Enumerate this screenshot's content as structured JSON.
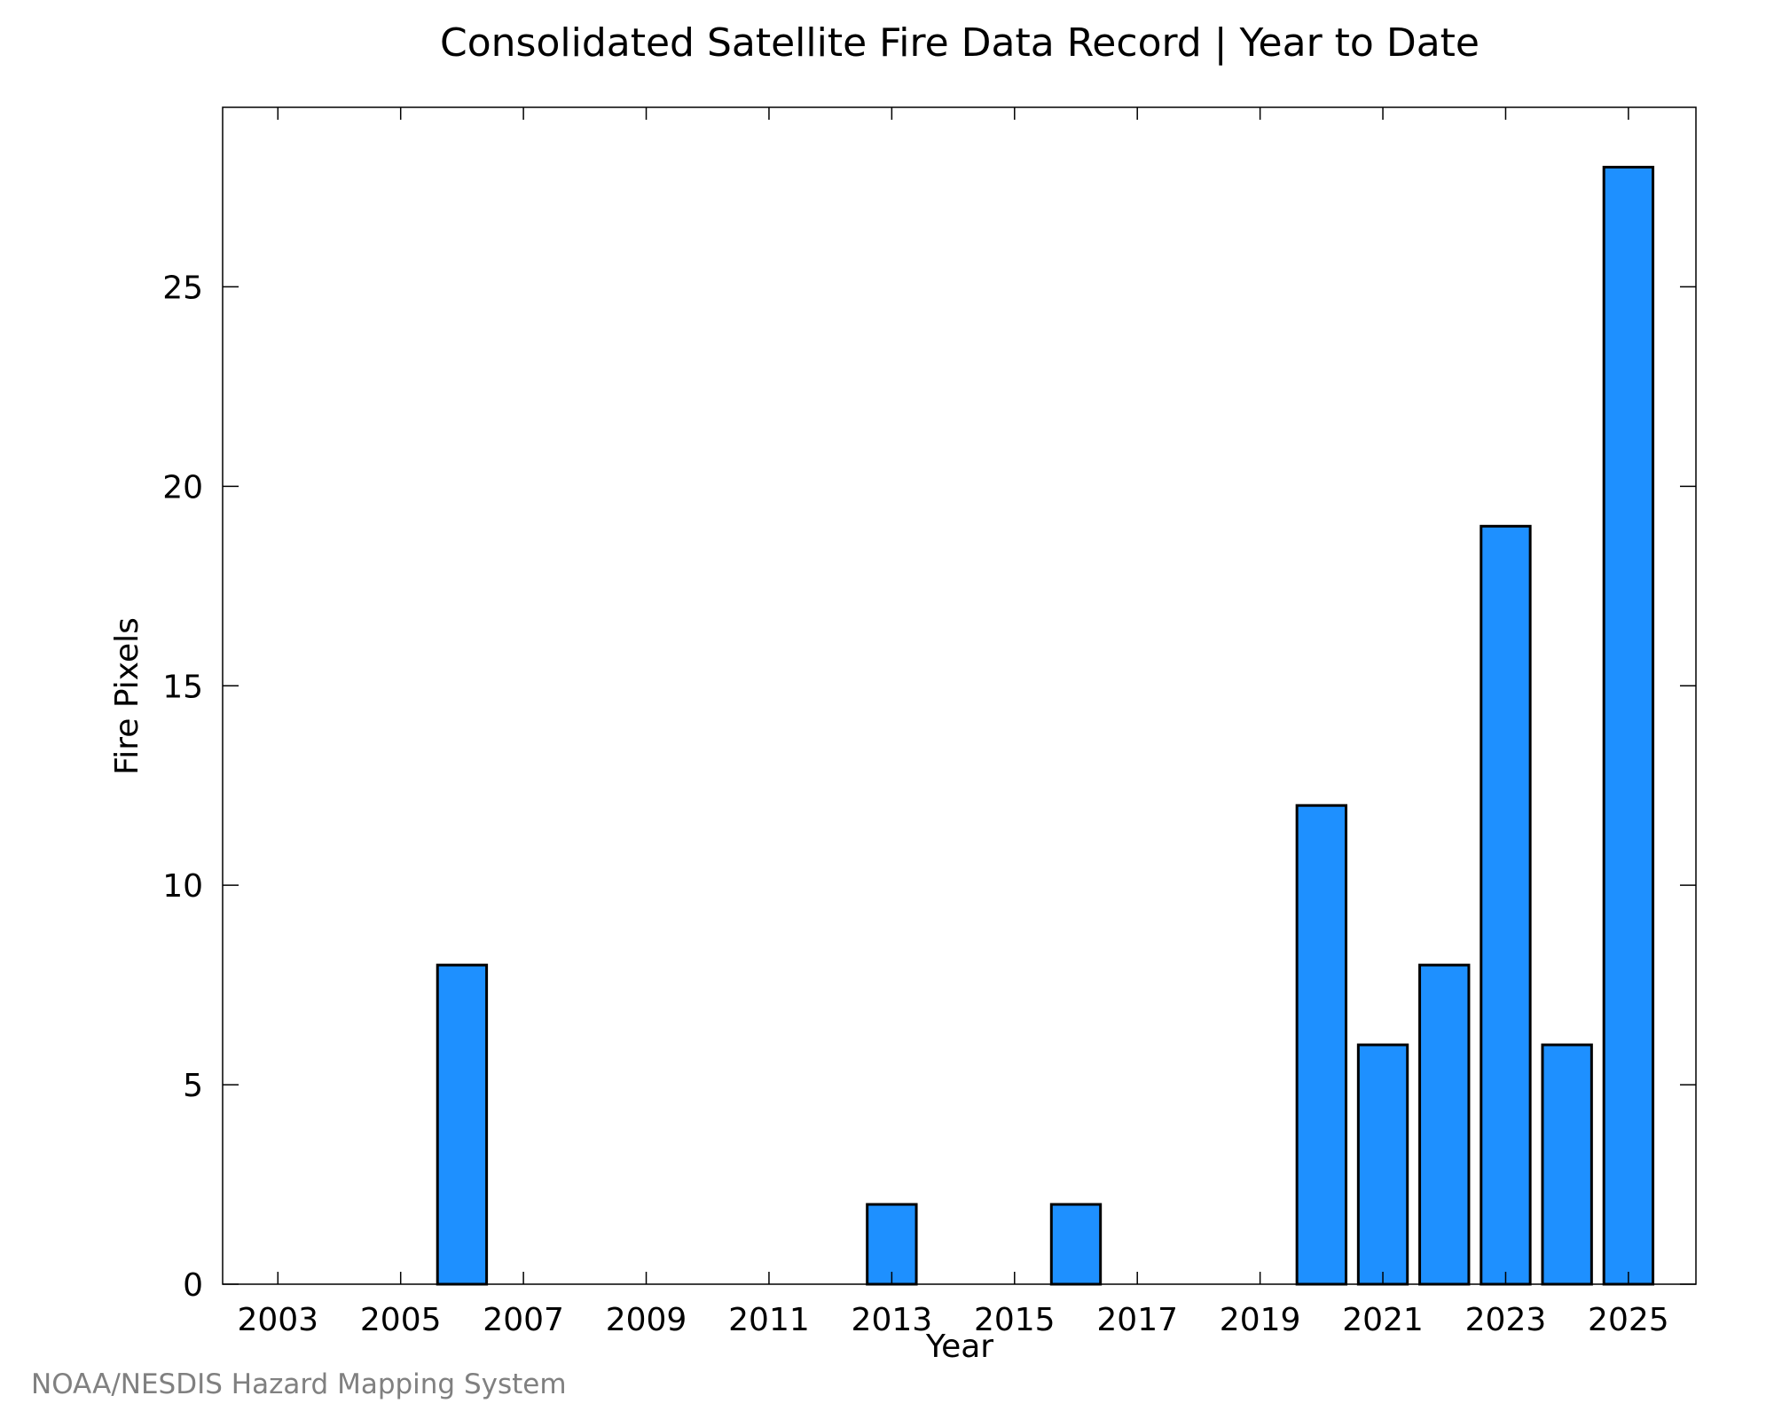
{
  "chart_data": {
    "type": "bar",
    "title": "Consolidated Satellite Fire Data Record | Year to Date",
    "xlabel": "Year",
    "ylabel": "Fire Pixels",
    "categories": [
      2003,
      2004,
      2005,
      2006,
      2007,
      2008,
      2009,
      2010,
      2011,
      2012,
      2013,
      2014,
      2015,
      2016,
      2017,
      2018,
      2019,
      2020,
      2021,
      2022,
      2023,
      2024,
      2025
    ],
    "values": [
      0,
      0,
      0,
      8,
      0,
      0,
      0,
      0,
      0,
      0,
      2,
      0,
      0,
      2,
      0,
      0,
      0,
      12,
      6,
      8,
      19,
      6,
      28
    ],
    "xlim": [
      2002.1,
      2026.1
    ],
    "ylim": [
      0,
      29.5
    ],
    "x_ticks": [
      "2003",
      "2005",
      "2007",
      "2009",
      "2011",
      "2013",
      "2015",
      "2017",
      "2019",
      "2021",
      "2023",
      "2025"
    ],
    "y_ticks": [
      "0",
      "5",
      "10",
      "15",
      "20",
      "25"
    ],
    "bar_color": "#1e90ff",
    "bar_edge_color": "#000000",
    "grid": false,
    "legend": "none"
  },
  "footer": {
    "credit": "NOAA/NESDIS Hazard Mapping System"
  }
}
